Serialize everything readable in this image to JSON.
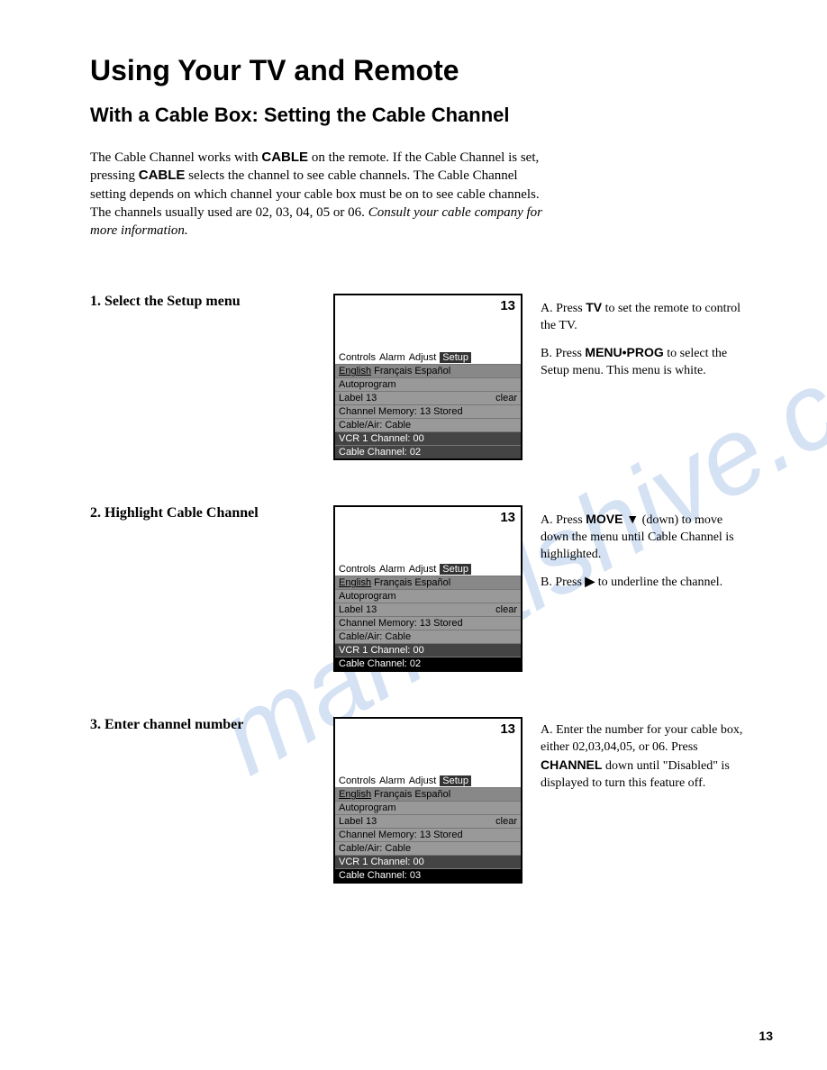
{
  "watermark": "manualshive.co",
  "page_number": "13",
  "title": "Using Your TV and Remote",
  "subtitle": "With a Cable Box:  Setting the Cable Channel",
  "intro": {
    "line1_a": "The Cable Channel works with ",
    "line1_b": "CABLE",
    "line1_c": " on the remote.  If the Cable Channel is set, pressing ",
    "line1_d": "CABLE",
    "line1_e": " selects the channel to see cable channels. The Cable Channel setting depends on which channel your cable box must be on to see cable channels.  The channels usually used are 02, 03, 04, 05 or 06.  ",
    "line1_f": "Consult your cable company for more information."
  },
  "tv": {
    "channel": "13",
    "tabs": [
      "Controls",
      "Alarm",
      "Adjust",
      "Setup"
    ],
    "lang": [
      "English",
      "Français",
      "Español"
    ],
    "rows": {
      "autoprogram": "Autoprogram",
      "label": "Label 13",
      "label_right": "clear",
      "chmem": "Channel Memory: 13 Stored",
      "cableair": "Cable/Air: Cable",
      "vcr": "VCR 1 Channel: 00",
      "cable02": "Cable Channel:  02",
      "cable03": "Cable Channel:  03"
    }
  },
  "steps": [
    {
      "num": "1.",
      "title": "Select the Setup menu",
      "items": [
        {
          "label": "A.",
          "pre": "Press ",
          "bold": "TV",
          "post": " to set the remote to control the TV."
        },
        {
          "label": "B.",
          "pre": "Press ",
          "bold": "MENU•PROG",
          "post": " to select the Setup menu.  This menu is white."
        }
      ]
    },
    {
      "num": "2.",
      "title": "Highlight Cable Channel",
      "items": [
        {
          "label": "A.",
          "pre": "Press ",
          "bold": "MOVE ▼",
          "post": " (down) to move down the menu until Cable Channel is highlighted."
        },
        {
          "label": "B.",
          "pre": "Press ",
          "bold": "▶",
          "post": " to underline the channel."
        }
      ]
    },
    {
      "num": "3.",
      "title": "Enter channel number",
      "items": [
        {
          "label": "A.",
          "pre": "Enter the number for your cable box, either 02,03,04,05, or 06. Press ",
          "bold": "CHANNEL",
          "post": " down until \"Disabled\" is displayed to turn this feature off."
        }
      ]
    }
  ]
}
